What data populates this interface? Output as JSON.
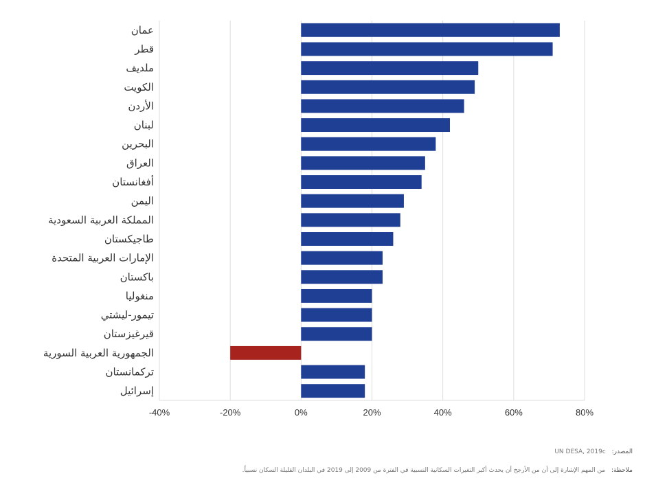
{
  "chart_data": {
    "type": "bar",
    "orientation": "horizontal",
    "categories": [
      "عمان",
      "قطر",
      "ملديف",
      "الكويت",
      "الأردن",
      "لبنان",
      "البحرين",
      "العراق",
      "أفغانستان",
      "اليمن",
      "المملكة العربية السعودية",
      "طاجيكستان",
      "الإمارات العربية المتحدة",
      "باكستان",
      "منغوليا",
      "تيمور-ليشتي",
      "قيرغيزستان",
      "الجمهورية العربية السورية",
      "تركمانستان",
      "إسرائيل"
    ],
    "values": [
      73,
      71,
      50,
      49,
      46,
      42,
      38,
      35,
      34,
      29,
      28,
      26,
      23,
      23,
      20,
      20,
      20,
      -20,
      18,
      18
    ],
    "xlim": [
      -40,
      80
    ],
    "xticks": [
      "-40%",
      "-20%",
      "0%",
      "20%",
      "40%",
      "60%",
      "80%"
    ],
    "grid": true,
    "colors": {
      "positive": "#1f3f95",
      "negative": "#a6231e"
    }
  },
  "footer": {
    "source_label": "المصدر:",
    "source_text": "UN DESA, 2019c",
    "note_label": "ملاحظة:",
    "note_text": "من المهم الإشارة إلى أن من الأرجح أن يحدث أكبر التغيرات السكانية النسبية في الفترة من 2009 إلى 2019 في البلدان القليلة السكان نسبياً."
  }
}
